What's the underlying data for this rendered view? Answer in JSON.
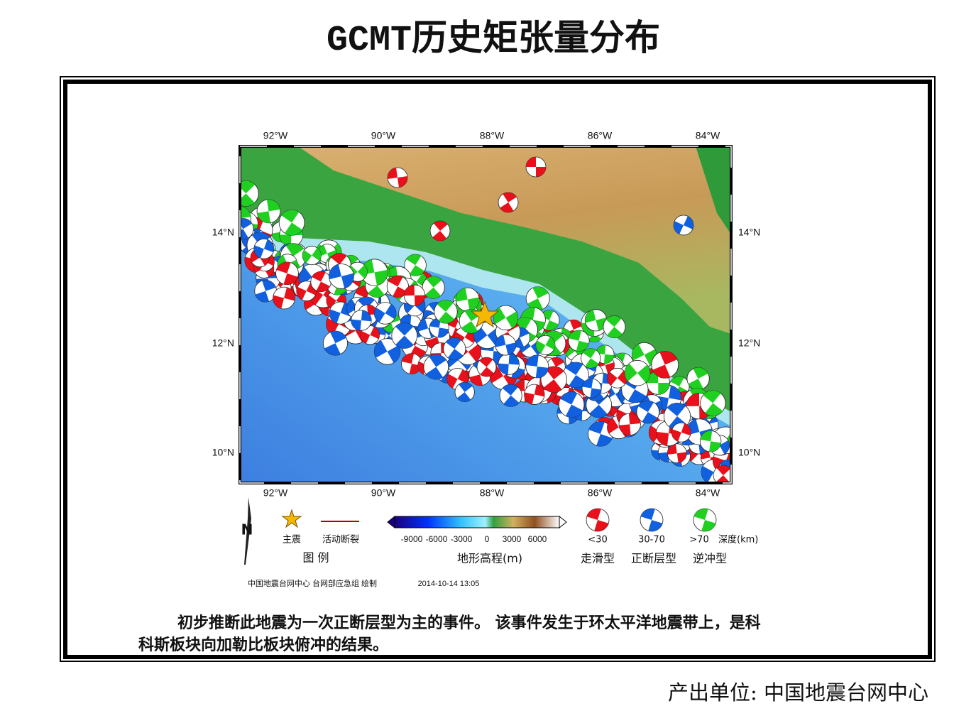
{
  "title": "GCMT历史矩张量分布",
  "map": {
    "lon_labels": [
      "92°W",
      "90°W",
      "88°W",
      "86°W",
      "84°W"
    ],
    "lat_labels": [
      "14°N",
      "12°N",
      "10°N"
    ],
    "north": "N",
    "legend": {
      "heading": "图 例",
      "mainshock": "主震",
      "fault": "活动断裂",
      "colorbar_ticks": [
        "-9000",
        "-6000",
        "-3000",
        "0",
        "3000",
        "6000"
      ],
      "colorbar_label": "地形高程(m)",
      "depth_classes": [
        "<30",
        "30-70",
        ">70"
      ],
      "depth_unit": "深度(km)",
      "mechanisms": [
        "走滑型",
        "正断层型",
        "逆冲型"
      ]
    },
    "credit": "中国地震台网中心 台网部应急组 绘制",
    "timestamp": "2014-10-14 13:05"
  },
  "description": [
    "初步推断此地震为一次正断层型为主的事件。 该事件发生于环太平洋地震带上，是科",
    "科斯板块向加勒比板块俯冲的结果。"
  ],
  "footer": "产出单位: 中国地震台网中心"
}
